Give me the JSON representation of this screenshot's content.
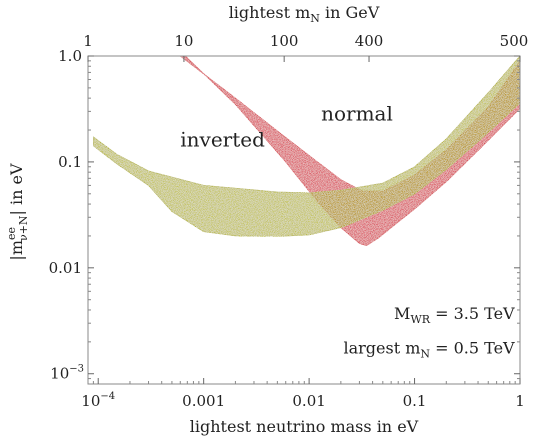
{
  "chart_data": {
    "type": "scatter",
    "xlabel": "lightest neutrino mass in eV",
    "ylabel": "|m",
    "ylabel_sup": "ee",
    "ylabel_sub": "ν+N",
    "ylabel_tail": "| in eV",
    "top_xlabel": "lightest m",
    "top_xlabel_sub": "N",
    "top_xlabel_tail": " in GeV",
    "x_scale": "log",
    "y_scale": "log",
    "xlim": [
      8e-05,
      1.0
    ],
    "ylim": [
      0.0008,
      1.0
    ],
    "x_ticks": [
      {
        "value": 0.0001,
        "label": "10",
        "sup": "−4"
      },
      {
        "value": 0.001,
        "label": "0.001",
        "sup": ""
      },
      {
        "value": 0.01,
        "label": "0.01",
        "sup": ""
      },
      {
        "value": 0.1,
        "label": "0.1",
        "sup": ""
      },
      {
        "value": 1,
        "label": "1",
        "sup": ""
      }
    ],
    "y_ticks": [
      {
        "value": 0.001,
        "label": "10",
        "sup": "−3"
      },
      {
        "value": 0.01,
        "label": "0.01",
        "sup": ""
      },
      {
        "value": 0.1,
        "label": "0.1",
        "sup": ""
      },
      {
        "value": 1.0,
        "label": "1.0",
        "sup": ""
      }
    ],
    "top_ticks": [
      {
        "x": 8e-05,
        "label": "1"
      },
      {
        "x": 0.00065,
        "label": "10"
      },
      {
        "x": 0.0058,
        "label": "100"
      },
      {
        "x": 0.037,
        "label": "400"
      },
      {
        "x": 1.0,
        "label": "500"
      }
    ],
    "series": [
      {
        "name": "normal",
        "color": "#d01c2a",
        "upper": [
          [
            0.0006,
            1.0
          ],
          [
            0.002,
            0.4
          ],
          [
            0.006,
            0.17
          ],
          [
            0.012,
            0.1
          ],
          [
            0.02,
            0.068
          ],
          [
            0.032,
            0.053
          ],
          [
            0.05,
            0.053
          ],
          [
            0.1,
            0.075
          ],
          [
            0.2,
            0.13
          ],
          [
            0.5,
            0.33
          ],
          [
            1.0,
            0.9
          ]
        ],
        "lower": [
          [
            0.00067,
            1.0
          ],
          [
            0.002,
            0.35
          ],
          [
            0.006,
            0.1
          ],
          [
            0.012,
            0.042
          ],
          [
            0.02,
            0.024
          ],
          [
            0.03,
            0.017
          ],
          [
            0.035,
            0.0162
          ],
          [
            0.045,
            0.019
          ],
          [
            0.07,
            0.027
          ],
          [
            0.1,
            0.036
          ],
          [
            0.2,
            0.065
          ],
          [
            0.5,
            0.16
          ],
          [
            1.0,
            0.32
          ]
        ]
      },
      {
        "name": "inverted",
        "color": "#a9a800",
        "upper": [
          [
            9e-05,
            0.172
          ],
          [
            0.00015,
            0.118
          ],
          [
            0.0003,
            0.082
          ],
          [
            0.001,
            0.06
          ],
          [
            0.005,
            0.052
          ],
          [
            0.01,
            0.051
          ],
          [
            0.02,
            0.054
          ],
          [
            0.05,
            0.063
          ],
          [
            0.1,
            0.09
          ],
          [
            0.2,
            0.165
          ],
          [
            0.5,
            0.45
          ],
          [
            1.0,
            1.0
          ]
        ],
        "lower": [
          [
            9e-05,
            0.142
          ],
          [
            0.00015,
            0.096
          ],
          [
            0.0003,
            0.06
          ],
          [
            0.0005,
            0.034
          ],
          [
            0.001,
            0.022
          ],
          [
            0.002,
            0.02
          ],
          [
            0.005,
            0.0198
          ],
          [
            0.01,
            0.0205
          ],
          [
            0.02,
            0.024
          ],
          [
            0.05,
            0.035
          ],
          [
            0.1,
            0.05
          ],
          [
            0.2,
            0.085
          ],
          [
            0.5,
            0.19
          ],
          [
            1.0,
            0.36
          ]
        ]
      }
    ],
    "labels": [
      {
        "text": "normal",
        "x": 0.013,
        "y": 0.245
      },
      {
        "text": "inverted",
        "x": 0.0006,
        "y": 0.14
      }
    ],
    "annotations": [
      {
        "text": "M",
        "sub": "WR",
        "tail": " = 3.5 TeV",
        "x": 0.97,
        "y": 0.0033
      },
      {
        "text": "largest m",
        "sub": "N",
        "tail": " = 0.5 TeV",
        "x": 0.97,
        "y": 0.00155
      }
    ]
  }
}
